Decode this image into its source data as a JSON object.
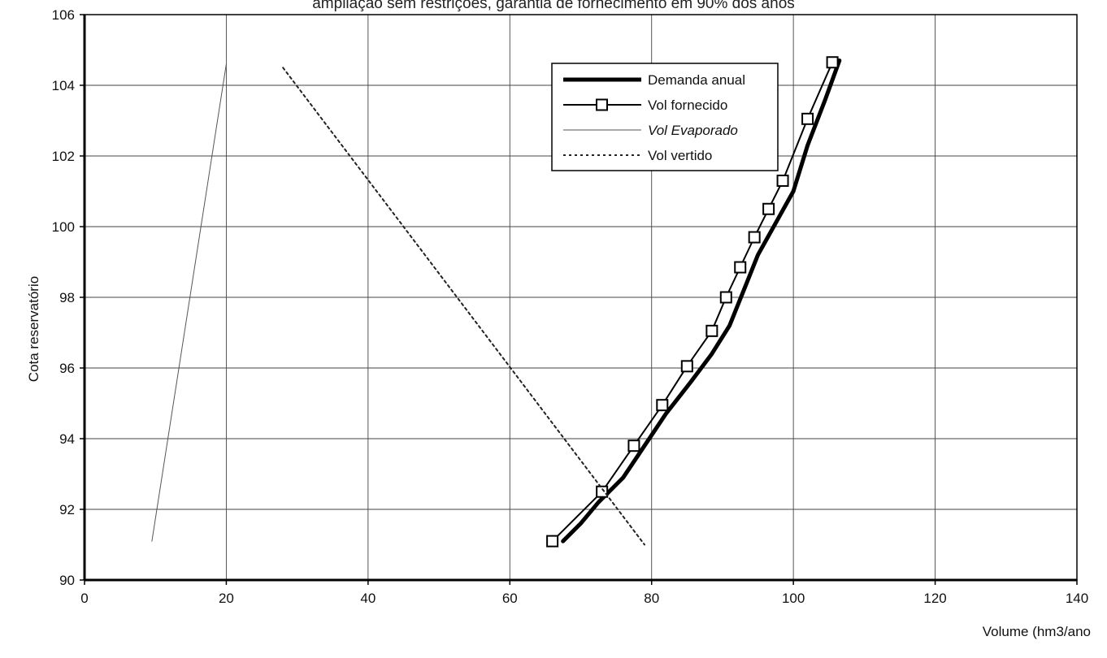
{
  "chart_data": {
    "type": "line",
    "title": "ampliação sem restrições, garantia de fornecimento em 90% dos anos",
    "xlabel": "Volume (hm3/ano",
    "ylabel": "Cota reservatório",
    "xlim": [
      0,
      140
    ],
    "ylim": [
      90,
      106
    ],
    "x_ticks": [
      "0",
      "20",
      "40",
      "60",
      "80",
      "100",
      "120",
      "140"
    ],
    "y_ticks": [
      "90",
      "92",
      "94",
      "96",
      "98",
      "100",
      "102",
      "104",
      "106"
    ],
    "grid": true,
    "legend_position": "top-center",
    "series": [
      {
        "name": "Demanda anual",
        "style": "thick",
        "color": "#000000",
        "points": [
          [
            67.5,
            91.1
          ],
          [
            70,
            91.6
          ],
          [
            72.5,
            92.2
          ],
          [
            76,
            92.9
          ],
          [
            79,
            93.8
          ],
          [
            82,
            94.7
          ],
          [
            85.5,
            95.6
          ],
          [
            88.5,
            96.4
          ],
          [
            91,
            97.2
          ],
          [
            93,
            98.2
          ],
          [
            95,
            99.2
          ],
          [
            97.5,
            100.1
          ],
          [
            100,
            101.0
          ],
          [
            102,
            102.3
          ],
          [
            104.5,
            103.6
          ],
          [
            106.5,
            104.7
          ]
        ]
      },
      {
        "name": "Vol fornecido",
        "style": "square-marker",
        "color": "#000000",
        "points": [
          [
            66,
            91.1
          ],
          [
            73,
            92.5
          ],
          [
            77.5,
            93.8
          ],
          [
            81.5,
            94.95
          ],
          [
            85,
            96.05
          ],
          [
            88.5,
            97.05
          ],
          [
            90.5,
            98.0
          ],
          [
            92.5,
            98.85
          ],
          [
            94.5,
            99.7
          ],
          [
            96.5,
            100.5
          ],
          [
            98.5,
            101.3
          ],
          [
            102,
            103.05
          ],
          [
            105.5,
            104.65
          ]
        ]
      },
      {
        "name": "Vol Evaporado",
        "style": "thin",
        "color": "#555555",
        "points": [
          [
            9.5,
            91.1
          ],
          [
            20,
            104.6
          ]
        ]
      },
      {
        "name": "Vol vertido",
        "style": "dotted",
        "color": "#222222",
        "points": [
          [
            28,
            104.5
          ],
          [
            79,
            91.0
          ]
        ]
      }
    ]
  }
}
